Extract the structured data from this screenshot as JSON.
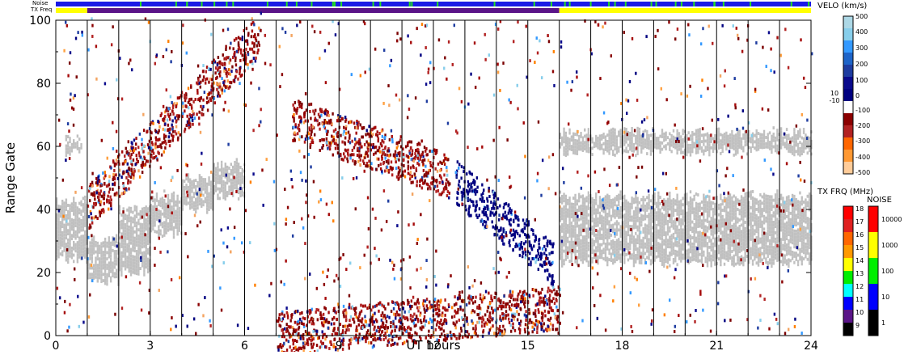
{
  "chart_data": {
    "type": "heatmap",
    "xlabel": "UT hours",
    "ylabel": "Range Gate",
    "x_ticks": [
      "0",
      "3",
      "6",
      "9",
      "12",
      "15",
      "18",
      "21",
      "24"
    ],
    "y_ticks": [
      "0",
      "20",
      "40",
      "60",
      "80",
      "100"
    ],
    "xlim": [
      0,
      24
    ],
    "ylim": [
      0,
      100
    ],
    "scan_lines_hours": [
      1,
      2,
      3,
      4,
      5,
      6,
      7,
      8,
      9,
      10,
      11,
      12,
      13,
      14,
      15,
      16,
      17,
      18,
      19,
      20,
      21,
      22,
      23
    ],
    "status_rows": {
      "noise_label": "Noise",
      "txfreq_label": "TX Freq",
      "noise_color": "#1a1ae6",
      "noise_speckle_color": "#22dd22",
      "txfreq_segments": [
        {
          "start": 0,
          "end": 1,
          "color": "#ffff00"
        },
        {
          "start": 1,
          "end": 16,
          "color": "#5a1488"
        },
        {
          "start": 16,
          "end": 24,
          "color": "#ffff00"
        }
      ]
    },
    "ground_scatter_color": "#c0c0c0",
    "ground_scatter_bands": [
      {
        "h0": 0,
        "h1": 1,
        "g0": 24,
        "g1": 42
      },
      {
        "h0": 1,
        "h1": 2,
        "g0": 17,
        "g1": 30
      },
      {
        "h0": 2,
        "h1": 3,
        "g0": 20,
        "g1": 40
      },
      {
        "h0": 3,
        "h1": 4,
        "g0": 32,
        "g1": 44
      },
      {
        "h0": 4,
        "h1": 5,
        "g0": 40,
        "g1": 50
      },
      {
        "h0": 5,
        "h1": 6,
        "g0": 44,
        "g1": 54
      },
      {
        "h0": 16,
        "h1": 24,
        "g0": 23,
        "g1": 44
      },
      {
        "h0": 0.3,
        "h1": 0.8,
        "g0": 58,
        "g1": 62
      },
      {
        "h0": 16,
        "h1": 24,
        "g0": 58,
        "g1": 64
      }
    ],
    "ionospheric_scatter": [
      {
        "name": "morning rising band",
        "h0": 1,
        "h1": 6.5,
        "g_start": 40,
        "g_end": 95
      },
      {
        "name": "daytime descending band",
        "h0": 7.5,
        "h1": 12.5,
        "g_start": 68,
        "g_end": 50
      },
      {
        "name": "toward-radar band",
        "h0": 12.7,
        "h1": 15.8,
        "g_start": 48,
        "g_end": 22
      },
      {
        "name": "near range",
        "h0": 7,
        "h1": 16,
        "g_start": 0,
        "g_end": 8
      }
    ],
    "velocity_colorbar": {
      "title": "VELO (km/s)",
      "tick_labels": [
        "500",
        "400",
        "300",
        "200",
        "100",
        "10",
        "0",
        "-10",
        "-100",
        "-200",
        "-300",
        "-400",
        "-500"
      ],
      "range": [
        -500,
        500
      ]
    },
    "txfreq_colorbar": {
      "title": "TX FRQ (MHz)",
      "tick_labels": [
        "18",
        "17",
        "16",
        "15",
        "14",
        "13",
        "12",
        "11",
        "10",
        "9"
      ],
      "colors": [
        "#ff0000",
        "#e02020",
        "#ff6600",
        "#ff9900",
        "#ffff00",
        "#00ee00",
        "#00ffff",
        "#0000ff",
        "#5a1488",
        "#000000"
      ]
    },
    "noise_colorbar": {
      "title": "NOISE",
      "tick_labels": [
        "10000",
        "1000",
        "100",
        "10",
        "1"
      ],
      "colors": [
        "#ff0000",
        "#ffff00",
        "#00ee00",
        "#0000ff",
        "#000000"
      ]
    }
  }
}
